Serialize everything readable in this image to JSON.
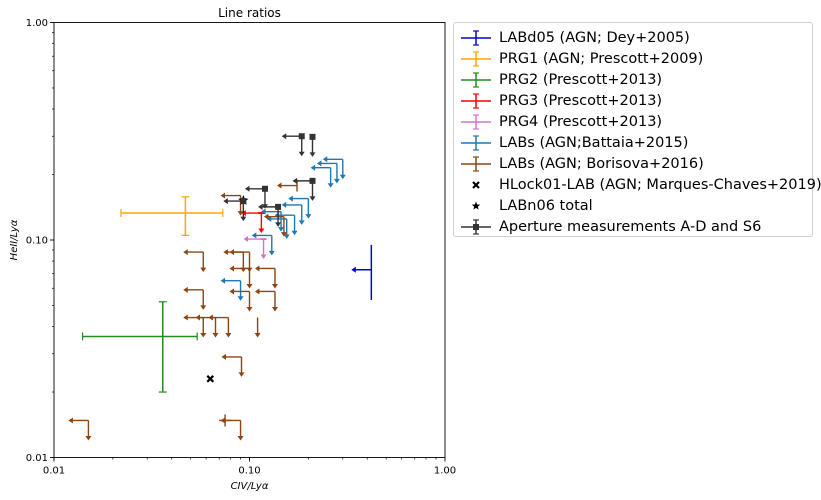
{
  "chart_data": {
    "type": "scatter",
    "title": "Line ratios",
    "xlabel": "CIV/Lyα",
    "ylabel": "HeII/Lyα",
    "xscale": "log",
    "yscale": "log",
    "xlim": [
      0.01,
      1.0
    ],
    "ylim": [
      0.01,
      1.0
    ],
    "xticks": [
      "0.01",
      "0.10",
      "1.00"
    ],
    "yticks": [
      "0.01",
      "0.10",
      "1.00"
    ],
    "grid": false,
    "legend_position": "outside-right",
    "series": [
      {
        "name": "LABd05 (AGN; Dey+2005)",
        "color": "#0000dd",
        "marker": "errorbar",
        "points": [
          {
            "x": 0.42,
            "y": 0.073,
            "xerr": [
              0.12,
              0
            ],
            "yerr": [
              0.02,
              0.022
            ],
            "xlimit": "upper"
          }
        ]
      },
      {
        "name": "PRG1 (AGN; Prescott+2009)",
        "color": "#ffa500",
        "marker": "errorbar",
        "points": [
          {
            "x": 0.047,
            "y": 0.133,
            "xerr": [
              0.025,
              0.026
            ],
            "yerr": [
              0.028,
              0.025
            ]
          }
        ]
      },
      {
        "name": "PRG2 (Prescott+2013)",
        "color": "#228b22",
        "marker": "errorbar",
        "points": [
          {
            "x": 0.036,
            "y": 0.036,
            "xerr": [
              0.022,
              0.018
            ],
            "yerr": [
              0.016,
              0.016
            ]
          }
        ]
      },
      {
        "name": "PRG3 (Prescott+2013)",
        "color": "#ff0000",
        "marker": "limit",
        "points": [
          {
            "x": 0.115,
            "y": 0.133,
            "xlimit": "upper",
            "ylimit": "upper"
          }
        ]
      },
      {
        "name": "PRG4 (Prescott+2013)",
        "color": "#da70d6",
        "marker": "limit",
        "points": [
          {
            "x": 0.118,
            "y": 0.101,
            "xlimit": "upper",
            "ylimit": "upper"
          }
        ]
      },
      {
        "name": "LABs (AGN;Battaia+2015)",
        "color": "#1f77b4",
        "marker": "limit",
        "points": [
          {
            "x": 0.3,
            "y": 0.235,
            "xlimit": "upper",
            "ylimit": "upper"
          },
          {
            "x": 0.28,
            "y": 0.225,
            "xlimit": "upper",
            "ylimit": "upper"
          },
          {
            "x": 0.26,
            "y": 0.215,
            "xlimit": "upper",
            "ylimit": "upper"
          },
          {
            "x": 0.2,
            "y": 0.155,
            "xlimit": "upper",
            "ylimit": "upper"
          },
          {
            "x": 0.185,
            "y": 0.145,
            "xlimit": "upper",
            "ylimit": "upper"
          },
          {
            "x": 0.17,
            "y": 0.13,
            "xlimit": "upper",
            "ylimit": "upper"
          },
          {
            "x": 0.155,
            "y": 0.125,
            "xlimit": "upper",
            "ylimit": "upper"
          },
          {
            "x": 0.145,
            "y": 0.135,
            "xlimit": "upper",
            "ylimit": "upper"
          },
          {
            "x": 0.13,
            "y": 0.105,
            "xlimit": "upper",
            "ylimit": "upper"
          },
          {
            "x": 0.09,
            "y": 0.065,
            "xlimit": "upper",
            "ylimit": "upper"
          }
        ]
      },
      {
        "name": "LABs (AGN; Borisova+2016)",
        "color": "#8b4513",
        "marker": "limit",
        "points": [
          {
            "x": 0.175,
            "y": 0.178,
            "xlimit": "upper",
            "ylimit": "none"
          },
          {
            "x": 0.09,
            "y": 0.16,
            "xlimit": "upper",
            "ylimit": "upper"
          },
          {
            "x": 0.15,
            "y": 0.128,
            "xlimit": "upper",
            "ylimit": "upper"
          },
          {
            "x": 0.058,
            "y": 0.088,
            "xlimit": "upper",
            "ylimit": "upper"
          },
          {
            "x": 0.093,
            "y": 0.088,
            "xlimit": "upper",
            "ylimit": "upper"
          },
          {
            "x": 0.1,
            "y": 0.088,
            "xlimit": "upper",
            "ylimit": "upper"
          },
          {
            "x": 0.1,
            "y": 0.074,
            "xlimit": "upper",
            "ylimit": "upper"
          },
          {
            "x": 0.135,
            "y": 0.074,
            "xlimit": "upper",
            "ylimit": "upper"
          },
          {
            "x": 0.058,
            "y": 0.059,
            "xlimit": "upper",
            "ylimit": "upper"
          },
          {
            "x": 0.1,
            "y": 0.058,
            "xlimit": "upper",
            "ylimit": "upper"
          },
          {
            "x": 0.135,
            "y": 0.058,
            "xlimit": "upper",
            "ylimit": "upper"
          },
          {
            "x": 0.058,
            "y": 0.044,
            "xlimit": "upper",
            "ylimit": "upper"
          },
          {
            "x": 0.067,
            "y": 0.044,
            "xlimit": "upper",
            "ylimit": "upper"
          },
          {
            "x": 0.078,
            "y": 0.044,
            "xlimit": "upper",
            "ylimit": "upper"
          },
          {
            "x": 0.11,
            "y": 0.044,
            "xlimit": "none",
            "ylimit": "upper"
          },
          {
            "x": 0.091,
            "y": 0.029,
            "xlimit": "upper",
            "ylimit": "upper"
          },
          {
            "x": 0.015,
            "y": 0.0148,
            "xlimit": "upper",
            "ylimit": "upper"
          },
          {
            "x": 0.075,
            "y": 0.0148,
            "xlimit": "none",
            "ylimit": "none"
          },
          {
            "x": 0.09,
            "y": 0.0148,
            "xlimit": "upper",
            "ylimit": "upper"
          }
        ]
      },
      {
        "name": "HLock01-LAB (AGN; Marques-Chaves+2019)",
        "color": "#000000",
        "marker": "x",
        "points": [
          {
            "x": 0.063,
            "y": 0.023
          }
        ]
      },
      {
        "name": "LABn06 total",
        "color": "#000000",
        "marker": "star",
        "points": [
          {
            "x": 0.093,
            "y": 0.152
          }
        ]
      },
      {
        "name": "Aperture measurements A-D and S6",
        "color": "#333333",
        "marker": "square",
        "points": [
          {
            "x": 0.185,
            "y": 0.3,
            "xlimit": "upper",
            "ylimit": "upper"
          },
          {
            "x": 0.21,
            "y": 0.298,
            "xlimit": "none",
            "ylimit": "upper"
          },
          {
            "x": 0.21,
            "y": 0.187,
            "xlimit": "upper",
            "ylimit": "upper"
          },
          {
            "x": 0.12,
            "y": 0.172,
            "xlimit": "upper",
            "ylimit": "upper"
          },
          {
            "x": 0.093,
            "y": 0.151,
            "xlimit": "upper",
            "ylimit": "upper"
          },
          {
            "x": 0.14,
            "y": 0.142,
            "xlimit": "upper",
            "ylimit": "upper"
          }
        ]
      }
    ]
  }
}
